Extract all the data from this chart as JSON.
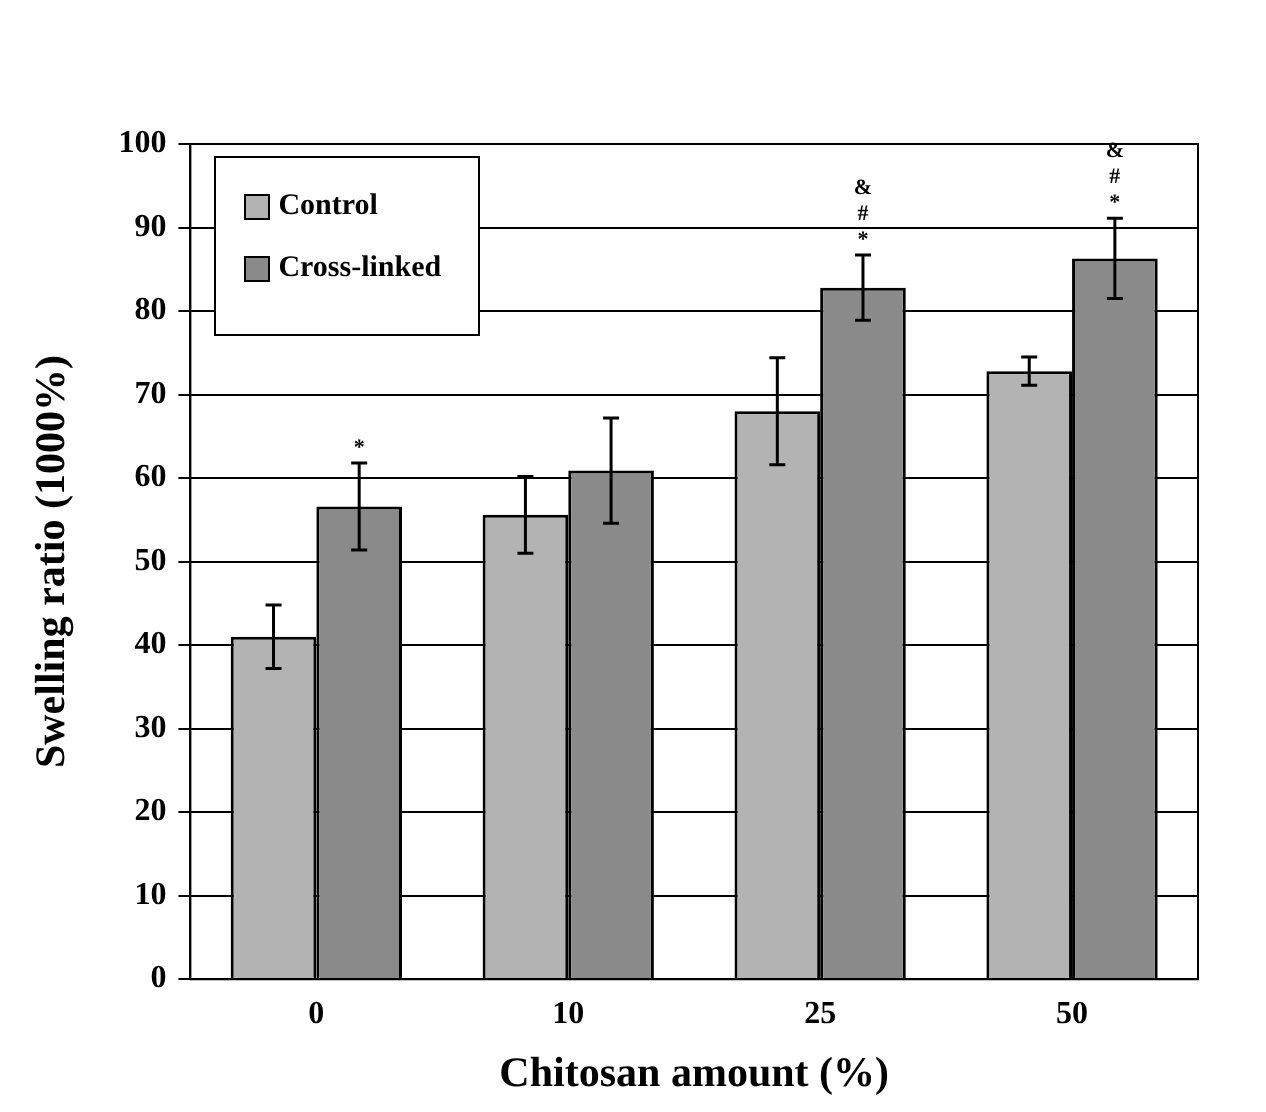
{
  "chart_data": {
    "type": "bar",
    "xlabel": "Chitosan amount (%)",
    "ylabel": "Swelling ratio (1000%)",
    "categories": [
      "0",
      "10",
      "25",
      "50"
    ],
    "series": [
      {
        "name": "Control",
        "color": "#b3b3b3",
        "values": [
          41,
          55.6,
          68,
          72.8
        ],
        "errors": [
          3.8,
          4.6,
          6.4,
          1.7
        ]
      },
      {
        "name": "Cross-linked",
        "color": "#8a8a8a",
        "values": [
          56.6,
          60.9,
          82.8,
          86.3
        ],
        "errors": [
          5.2,
          6.3,
          3.9,
          4.8
        ]
      }
    ],
    "ylim": [
      0,
      100
    ],
    "yticks": [
      0,
      10,
      20,
      30,
      40,
      50,
      60,
      70,
      80,
      90,
      100
    ],
    "grid": "y",
    "legend": "top left",
    "annotations": [
      {
        "text": "*",
        "x": "0",
        "y": 56.6
      },
      {
        "text": "*",
        "x": "25",
        "y": 82.8
      },
      "#",
      "&",
      {
        "text": "*",
        "x": "50",
        "y": 86.3
      },
      "#",
      "&"
    ]
  }
}
